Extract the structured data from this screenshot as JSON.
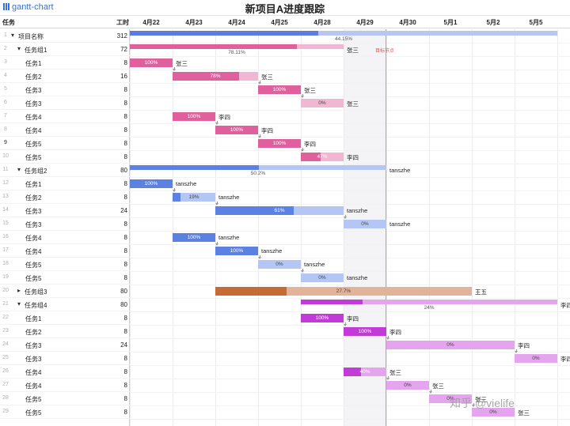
{
  "app": {
    "logo_text": "gantt-chart",
    "title": "新项目A进度跟踪"
  },
  "header": {
    "task_col": "任务",
    "work_col": "工时",
    "days": [
      "4月22",
      "4月23",
      "4月24",
      "4月25",
      "4月28",
      "4月29",
      "4月30",
      "5月1",
      "5月2",
      "5月5"
    ]
  },
  "milestone": {
    "label": "目标节点"
  },
  "watermark": "知乎 @vielife",
  "colors": {
    "project": "#5b7de0",
    "project_bg": "#b8c6f0",
    "pink": "#e0609d",
    "pink_bg": "#f1b6d2",
    "blue": "#5b82e3",
    "blue_bg": "#b4c6f3",
    "brown": "#c66b33",
    "brown_bg": "#e3b399",
    "purple": "#c23bd8",
    "purple_bg": "#e4a4ee",
    "milestone": "#f28b8b"
  },
  "rows": [
    {
      "num": "1",
      "name": "项目名称",
      "work": "312",
      "level": 0,
      "toggle": "down",
      "bar": {
        "kind": "group",
        "start": 0,
        "end": 10,
        "progress": 44.15,
        "label": "44.15%",
        "color": "project"
      },
      "right_label": ""
    },
    {
      "num": "2",
      "name": "任务组1",
      "work": "72",
      "level": 1,
      "toggle": "down",
      "bar": {
        "kind": "group",
        "start": 0,
        "end": 5,
        "progress": 78.11,
        "label": "78.11%",
        "color": "pink"
      },
      "right_label": "张三"
    },
    {
      "num": "3",
      "name": "任务1",
      "work": "8",
      "level": 2,
      "bar": {
        "kind": "task",
        "start": 0,
        "end": 1,
        "progress": 100,
        "label": "100%",
        "color": "pink"
      },
      "right_label": "张三"
    },
    {
      "num": "4",
      "name": "任务2",
      "work": "16",
      "level": 2,
      "bar": {
        "kind": "task",
        "start": 1,
        "end": 3,
        "progress": 78,
        "label": "78%",
        "color": "pink"
      },
      "right_label": "张三"
    },
    {
      "num": "5",
      "name": "任务3",
      "work": "8",
      "level": 2,
      "bar": {
        "kind": "task",
        "start": 3,
        "end": 4,
        "progress": 100,
        "label": "100%",
        "color": "pink"
      },
      "right_label": "张三"
    },
    {
      "num": "6",
      "name": "任务3",
      "work": "8",
      "level": 2,
      "bar": {
        "kind": "task",
        "start": 4,
        "end": 5,
        "progress": 0,
        "label": "0%",
        "color": "pink"
      },
      "right_label": "张三"
    },
    {
      "num": "7",
      "name": "任务4",
      "work": "8",
      "level": 2,
      "bar": {
        "kind": "task",
        "start": 1,
        "end": 2,
        "progress": 100,
        "label": "100%",
        "color": "pink"
      },
      "right_label": "李四"
    },
    {
      "num": "8",
      "name": "任务4",
      "work": "8",
      "level": 2,
      "bar": {
        "kind": "task",
        "start": 2,
        "end": 3,
        "progress": 100,
        "label": "100%",
        "color": "pink"
      },
      "right_label": "李四"
    },
    {
      "num": "9",
      "name": "任务5",
      "work": "8",
      "level": 2,
      "bar": {
        "kind": "task",
        "start": 3,
        "end": 4,
        "progress": 100,
        "label": "100%",
        "color": "pink"
      },
      "right_label": "李四"
    },
    {
      "num": "10",
      "name": "任务5",
      "work": "8",
      "level": 2,
      "bar": {
        "kind": "task",
        "start": 4,
        "end": 5,
        "progress": 47,
        "label": "47%",
        "color": "pink"
      },
      "right_label": "李四"
    },
    {
      "num": "11",
      "name": "任务组2",
      "work": "80",
      "level": 1,
      "toggle": "down",
      "bar": {
        "kind": "group",
        "start": 0,
        "end": 6,
        "progress": 50.2,
        "label": "50.2%",
        "color": "blue"
      },
      "right_label": "tanszhe"
    },
    {
      "num": "12",
      "name": "任务1",
      "work": "8",
      "level": 2,
      "bar": {
        "kind": "task",
        "start": 0,
        "end": 1,
        "progress": 100,
        "label": "100%",
        "color": "blue"
      },
      "right_label": "tanszhe"
    },
    {
      "num": "13",
      "name": "任务2",
      "work": "8",
      "level": 2,
      "bar": {
        "kind": "task",
        "start": 1,
        "end": 2,
        "progress": 19,
        "label": "19%",
        "color": "blue"
      },
      "right_label": "tanszhe"
    },
    {
      "num": "14",
      "name": "任务3",
      "work": "24",
      "level": 2,
      "bar": {
        "kind": "task",
        "start": 2,
        "end": 5,
        "progress": 61,
        "label": "61%",
        "color": "blue"
      },
      "right_label": "tanszhe"
    },
    {
      "num": "15",
      "name": "任务3",
      "work": "8",
      "level": 2,
      "bar": {
        "kind": "task",
        "start": 5,
        "end": 6,
        "progress": 0,
        "label": "0%",
        "color": "blue"
      },
      "right_label": "tanszhe"
    },
    {
      "num": "16",
      "name": "任务4",
      "work": "8",
      "level": 2,
      "bar": {
        "kind": "task",
        "start": 1,
        "end": 2,
        "progress": 100,
        "label": "100%",
        "color": "blue"
      },
      "right_label": "tanszhe"
    },
    {
      "num": "17",
      "name": "任务4",
      "work": "8",
      "level": 2,
      "bar": {
        "kind": "task",
        "start": 2,
        "end": 3,
        "progress": 100,
        "label": "100%",
        "color": "blue"
      },
      "right_label": "tanszhe"
    },
    {
      "num": "18",
      "name": "任务5",
      "work": "8",
      "level": 2,
      "bar": {
        "kind": "task",
        "start": 3,
        "end": 4,
        "progress": 0,
        "label": "0%",
        "color": "blue"
      },
      "right_label": "tanszhe"
    },
    {
      "num": "19",
      "name": "任务5",
      "work": "8",
      "level": 2,
      "bar": {
        "kind": "task",
        "start": 4,
        "end": 5,
        "progress": 0,
        "label": "0%",
        "color": "blue"
      },
      "right_label": "tanszhe"
    },
    {
      "num": "20",
      "name": "任务组3",
      "work": "80",
      "level": 1,
      "toggle": "right",
      "bar": {
        "kind": "task",
        "start": 2,
        "end": 8,
        "progress": 27.7,
        "label": "27.7%",
        "color": "brown"
      },
      "right_label": "王五"
    },
    {
      "num": "21",
      "name": "任务组4",
      "work": "80",
      "level": 1,
      "toggle": "down",
      "bar": {
        "kind": "group",
        "start": 4,
        "end": 10,
        "progress": 24,
        "label": "24%",
        "color": "purple"
      },
      "right_label": "李四"
    },
    {
      "num": "22",
      "name": "任务1",
      "work": "8",
      "level": 2,
      "bar": {
        "kind": "task",
        "start": 4,
        "end": 5,
        "progress": 100,
        "label": "100%",
        "color": "purple"
      },
      "right_label": "李四"
    },
    {
      "num": "23",
      "name": "任务2",
      "work": "8",
      "level": 2,
      "bar": {
        "kind": "task",
        "start": 5,
        "end": 6,
        "progress": 100,
        "label": "100%",
        "color": "purple"
      },
      "right_label": "李四"
    },
    {
      "num": "24",
      "name": "任务3",
      "work": "24",
      "level": 2,
      "bar": {
        "kind": "task",
        "start": 6,
        "end": 9,
        "progress": 0,
        "label": "0%",
        "color": "purple"
      },
      "right_label": "李四"
    },
    {
      "num": "25",
      "name": "任务3",
      "work": "8",
      "level": 2,
      "bar": {
        "kind": "task",
        "start": 9,
        "end": 10,
        "progress": 0,
        "label": "0%",
        "color": "purple"
      },
      "right_label": "李四"
    },
    {
      "num": "26",
      "name": "任务4",
      "work": "8",
      "level": 2,
      "bar": {
        "kind": "task",
        "start": 5,
        "end": 6,
        "progress": 40,
        "label": "40%",
        "color": "purple"
      },
      "right_label": "张三"
    },
    {
      "num": "27",
      "name": "任务4",
      "work": "8",
      "level": 2,
      "bar": {
        "kind": "task",
        "start": 6,
        "end": 7,
        "progress": 0,
        "label": "0%",
        "color": "purple"
      },
      "right_label": "张三"
    },
    {
      "num": "28",
      "name": "任务5",
      "work": "8",
      "level": 2,
      "bar": {
        "kind": "task",
        "start": 7,
        "end": 8,
        "progress": 0,
        "label": "0%",
        "color": "purple"
      },
      "right_label": "张三"
    },
    {
      "num": "29",
      "name": "任务5",
      "work": "8",
      "level": 2,
      "bar": {
        "kind": "task",
        "start": 8,
        "end": 9,
        "progress": 0,
        "label": "0%",
        "color": "purple"
      },
      "right_label": "张三"
    }
  ],
  "dependencies": [
    [
      2,
      3
    ],
    [
      3,
      4
    ],
    [
      4,
      5
    ],
    [
      6,
      7
    ],
    [
      7,
      8
    ],
    [
      8,
      9
    ],
    [
      11,
      12
    ],
    [
      12,
      13
    ],
    [
      13,
      14
    ],
    [
      15,
      16
    ],
    [
      16,
      17
    ],
    [
      17,
      18
    ],
    [
      21,
      22
    ],
    [
      22,
      23
    ],
    [
      23,
      24
    ],
    [
      25,
      26
    ],
    [
      26,
      27
    ],
    [
      27,
      28
    ]
  ]
}
